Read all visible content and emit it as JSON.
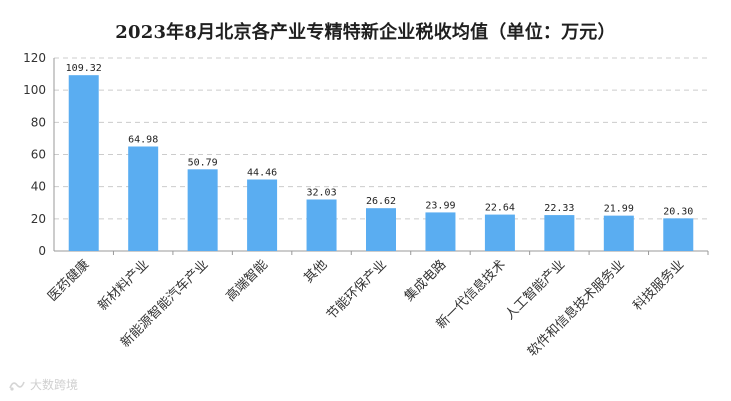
{
  "chart_data": {
    "type": "bar",
    "title": "2023年8月北京各产业专精特新企业税收均值（单位：万元）",
    "categories": [
      "医药健康",
      "新材料产业",
      "新能源智能汽车产业",
      "高端智能",
      "其他",
      "节能环保产业",
      "集成电路",
      "新一代信息技术",
      "人工智能产业",
      "软件和信息技术服务业",
      "科技服务业"
    ],
    "values": [
      109.32,
      64.98,
      50.79,
      44.46,
      32.03,
      26.62,
      23.99,
      22.64,
      22.33,
      21.99,
      20.3
    ],
    "value_labels": [
      "109.32",
      "64.98",
      "50.79",
      "44.46",
      "32.03",
      "26.62",
      "23.99",
      "22.64",
      "22.33",
      "21.99",
      "20.30"
    ],
    "ylim": [
      0,
      120
    ],
    "yticks": [
      0,
      20,
      40,
      60,
      80,
      100,
      120
    ],
    "xlabel": "",
    "ylabel": "",
    "grid": "horizontal-dashed",
    "legend": "none",
    "bar_color": "#5aadf1",
    "grid_color": "#cccccc",
    "axis_color": "#999999"
  },
  "watermark": {
    "text": "大数跨境",
    "icon": "logo-icon"
  }
}
